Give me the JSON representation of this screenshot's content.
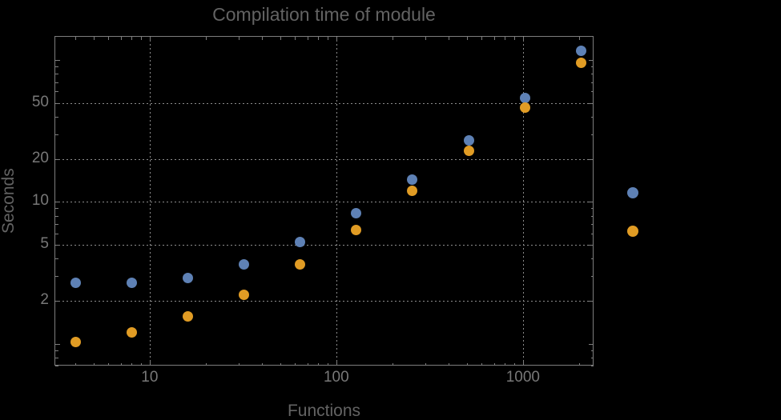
{
  "title": "Compilation time of module",
  "colors": {
    "background": "#000000",
    "series_blue": "#5e81b5",
    "series_orange": "#e19c24",
    "grid_gray": "#8c8c8c",
    "frame_gray": "#7d7d7d",
    "tick_label_gray": "#787878",
    "title_gray": "#636363",
    "axis_label_gray": "#636363"
  },
  "chart_data": {
    "type": "scatter",
    "title": "Compilation time of module",
    "xlabel": "Functions",
    "ylabel": "Seconds",
    "x_scale": "log",
    "y_scale": "log",
    "grid": "dotted",
    "x": [
      4,
      8,
      16,
      32,
      64,
      128,
      256,
      512,
      1024,
      2048
    ],
    "series": [
      {
        "name": "blue",
        "color": "#5e81b5",
        "values": [
          2.7,
          2.7,
          2.9,
          3.6,
          5.2,
          8.3,
          14.4,
          27,
          54,
          117
        ]
      },
      {
        "name": "orange",
        "color": "#e19c24",
        "values": [
          1.03,
          1.2,
          1.55,
          2.2,
          3.6,
          6.3,
          12,
          23,
          46,
          96
        ]
      }
    ],
    "x_axis": {
      "label": "Functions",
      "lim": [
        3.09,
        2390
      ],
      "ticks": [
        10,
        100,
        1000
      ],
      "tick_labels": [
        "10",
        "100",
        "1000"
      ],
      "minor_ticks": [
        4,
        5,
        6,
        7,
        8,
        9,
        20,
        30,
        40,
        50,
        60,
        70,
        80,
        90,
        200,
        300,
        400,
        500,
        600,
        700,
        800,
        900,
        2000
      ]
    },
    "y_axis": {
      "label": "Seconds",
      "lim": [
        0.7,
        148
      ],
      "ticks": [
        2,
        5,
        10,
        20,
        50
      ],
      "tick_labels": [
        "2",
        "5",
        "10",
        "20",
        "50"
      ],
      "unlabeled_major_ticks": [
        1,
        100
      ],
      "minor_ticks": [
        0.7,
        0.8,
        0.9,
        3,
        4,
        6,
        7,
        8,
        9,
        30,
        40,
        60,
        70,
        80,
        90
      ]
    },
    "legend": {
      "position": "outside-right",
      "markers": [
        {
          "series": "blue",
          "color": "#5e81b5"
        },
        {
          "series": "orange",
          "color": "#e19c24"
        }
      ]
    }
  }
}
